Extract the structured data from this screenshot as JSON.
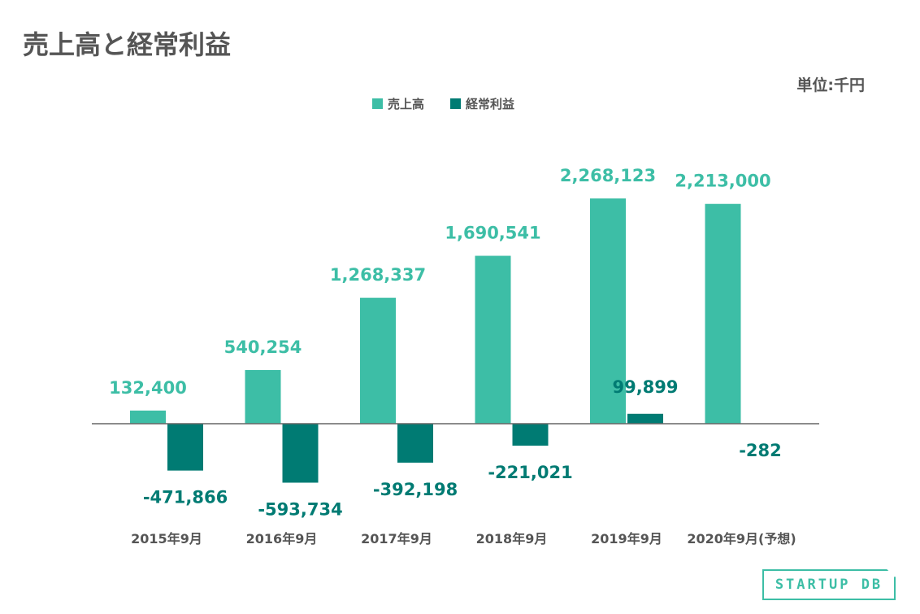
{
  "title": "売上高と経常利益",
  "unit": "単位:千円",
  "logo": "STARTUP DB",
  "colors": {
    "sales": "#3dbea6",
    "profit": "#007b73",
    "axis": "#666666",
    "text": "#555555"
  },
  "chart_data": {
    "type": "bar",
    "categories": [
      "2015年9月",
      "2016年9月",
      "2017年9月",
      "2018年9月",
      "2019年9月",
      "2020年9月(予想)"
    ],
    "series": [
      {
        "name": "売上高",
        "values": [
          132400,
          540254,
          1268337,
          1690541,
          2268123,
          2213000
        ],
        "labels": [
          "132,400",
          "540,254",
          "1,268,337",
          "1,690,541",
          "2,268,123",
          "2,213,000"
        ]
      },
      {
        "name": "経常利益",
        "values": [
          -471866,
          -593734,
          -392198,
          -221021,
          99899,
          -282
        ],
        "labels": [
          "-471,866",
          "-593,734",
          "-392,198",
          "-221,021",
          "99,899",
          "-282"
        ]
      }
    ],
    "legend": "top-center",
    "grid": false
  }
}
